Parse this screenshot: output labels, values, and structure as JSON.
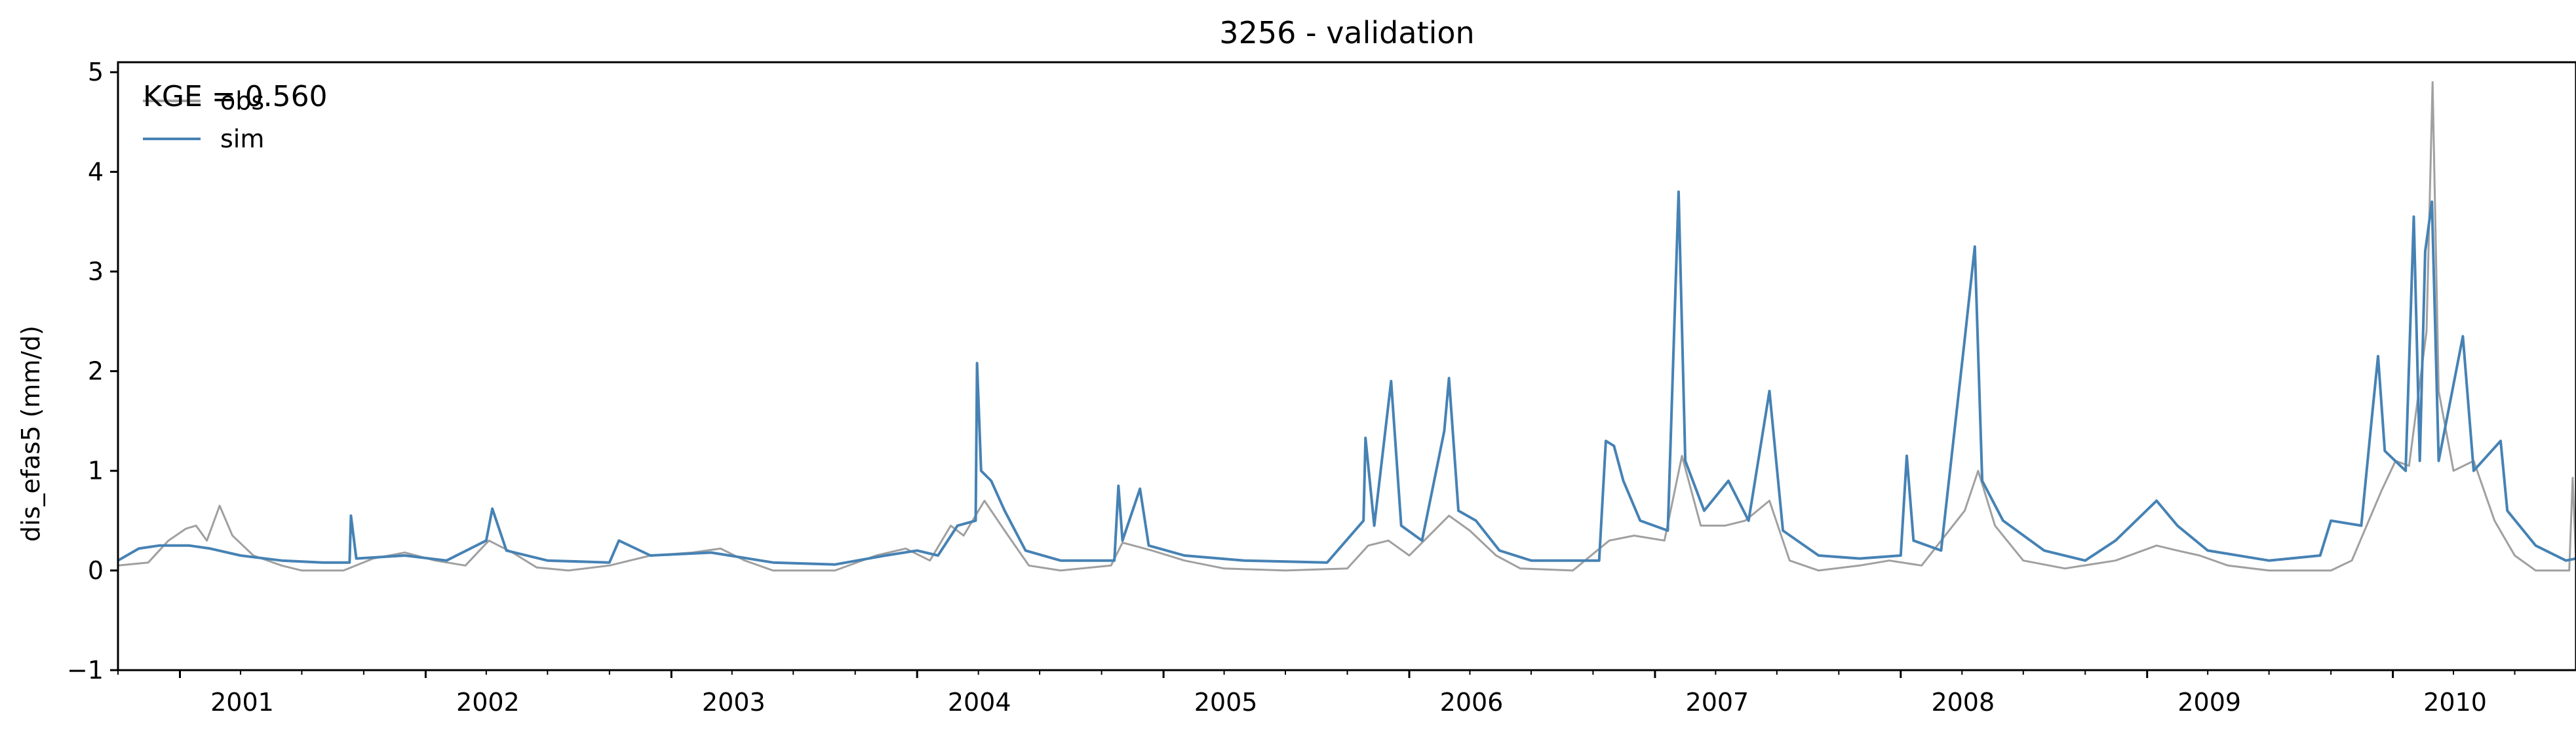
{
  "chart_data": {
    "type": "line",
    "title": "3256 - validation",
    "ylabel": "dis_efas5 (mm/d)",
    "xlabel": "",
    "annotation": "KGE = 0.560",
    "x_range": [
      "2000-10-01",
      "2010-09-30"
    ],
    "ylim": [
      -1,
      5.1
    ],
    "yticks": [
      -1,
      0,
      1,
      2,
      3,
      4,
      5
    ],
    "xticks": [
      "2001",
      "2002",
      "2003",
      "2004",
      "2005",
      "2006",
      "2007",
      "2008",
      "2009",
      "2010"
    ],
    "grid": false,
    "legend_position": "top-left",
    "series": [
      {
        "name": "obs",
        "color": "#a0a0a0",
        "points": [
          [
            "2000-10-01",
            0.05
          ],
          [
            "2000-11-15",
            0.08
          ],
          [
            "2000-12-15",
            0.3
          ],
          [
            "2001-01-10",
            0.42
          ],
          [
            "2001-01-25",
            0.45
          ],
          [
            "2001-02-10",
            0.3
          ],
          [
            "2001-03-01",
            0.65
          ],
          [
            "2001-03-20",
            0.35
          ],
          [
            "2001-04-20",
            0.15
          ],
          [
            "2001-06-01",
            0.05
          ],
          [
            "2001-07-01",
            0.0
          ],
          [
            "2001-09-01",
            0.0
          ],
          [
            "2001-10-15",
            0.12
          ],
          [
            "2001-12-01",
            0.18
          ],
          [
            "2002-01-15",
            0.1
          ],
          [
            "2002-03-01",
            0.05
          ],
          [
            "2002-04-05",
            0.3
          ],
          [
            "2002-05-10",
            0.18
          ],
          [
            "2002-06-15",
            0.03
          ],
          [
            "2002-08-01",
            0.0
          ],
          [
            "2002-10-01",
            0.05
          ],
          [
            "2002-12-01",
            0.15
          ],
          [
            "2003-02-01",
            0.18
          ],
          [
            "2003-03-15",
            0.22
          ],
          [
            "2003-04-20",
            0.1
          ],
          [
            "2003-06-01",
            0.0
          ],
          [
            "2003-09-01",
            0.0
          ],
          [
            "2003-11-01",
            0.15
          ],
          [
            "2003-12-15",
            0.22
          ],
          [
            "2004-01-20",
            0.1
          ],
          [
            "2004-02-20",
            0.45
          ],
          [
            "2004-03-10",
            0.35
          ],
          [
            "2004-04-10",
            0.7
          ],
          [
            "2004-05-10",
            0.4
          ],
          [
            "2004-06-15",
            0.05
          ],
          [
            "2004-08-01",
            0.0
          ],
          [
            "2004-10-15",
            0.05
          ],
          [
            "2004-11-01",
            0.28
          ],
          [
            "2004-12-15",
            0.2
          ],
          [
            "2005-02-01",
            0.1
          ],
          [
            "2005-04-01",
            0.02
          ],
          [
            "2005-07-01",
            0.0
          ],
          [
            "2005-10-01",
            0.02
          ],
          [
            "2005-11-01",
            0.25
          ],
          [
            "2005-12-01",
            0.3
          ],
          [
            "2006-01-01",
            0.15
          ],
          [
            "2006-03-01",
            0.55
          ],
          [
            "2006-04-01",
            0.4
          ],
          [
            "2006-05-10",
            0.15
          ],
          [
            "2006-06-15",
            0.02
          ],
          [
            "2006-09-01",
            0.0
          ],
          [
            "2006-10-25",
            0.3
          ],
          [
            "2006-12-01",
            0.35
          ],
          [
            "2007-01-15",
            0.3
          ],
          [
            "2007-02-10",
            1.15
          ],
          [
            "2007-03-10",
            0.45
          ],
          [
            "2007-04-15",
            0.45
          ],
          [
            "2007-05-15",
            0.5
          ],
          [
            "2007-06-20",
            0.7
          ],
          [
            "2007-07-20",
            0.1
          ],
          [
            "2007-09-01",
            0.0
          ],
          [
            "2007-11-01",
            0.05
          ],
          [
            "2007-12-15",
            0.1
          ],
          [
            "2008-02-01",
            0.05
          ],
          [
            "2008-04-05",
            0.6
          ],
          [
            "2008-04-25",
            1.0
          ],
          [
            "2008-05-20",
            0.45
          ],
          [
            "2008-07-01",
            0.1
          ],
          [
            "2008-09-01",
            0.02
          ],
          [
            "2008-11-15",
            0.1
          ],
          [
            "2009-01-15",
            0.25
          ],
          [
            "2009-02-15",
            0.2
          ],
          [
            "2009-03-20",
            0.15
          ],
          [
            "2009-05-01",
            0.05
          ],
          [
            "2009-07-01",
            0.0
          ],
          [
            "2009-10-01",
            0.0
          ],
          [
            "2009-11-01",
            0.1
          ],
          [
            "2009-12-15",
            0.8
          ],
          [
            "2010-01-05",
            1.1
          ],
          [
            "2010-01-25",
            1.05
          ],
          [
            "2010-02-20",
            2.4
          ],
          [
            "2010-03-01",
            4.9
          ],
          [
            "2010-03-10",
            1.8
          ],
          [
            "2010-04-01",
            1.0
          ],
          [
            "2010-05-01",
            1.1
          ],
          [
            "2010-06-01",
            0.5
          ],
          [
            "2010-07-01",
            0.15
          ],
          [
            "2010-08-01",
            0.0
          ],
          [
            "2010-09-20",
            0.0
          ],
          [
            "2010-09-25",
            0.93
          ],
          [
            "2010-09-30",
            0.1
          ]
        ]
      },
      {
        "name": "sim",
        "color": "#4682b4",
        "points": [
          [
            "2000-10-01",
            0.1
          ],
          [
            "2000-11-01",
            0.22
          ],
          [
            "2000-12-01",
            0.25
          ],
          [
            "2001-01-15",
            0.25
          ],
          [
            "2001-02-15",
            0.22
          ],
          [
            "2001-04-01",
            0.15
          ],
          [
            "2001-06-01",
            0.1
          ],
          [
            "2001-08-01",
            0.08
          ],
          [
            "2001-09-10",
            0.08
          ],
          [
            "2001-09-12",
            0.55
          ],
          [
            "2001-09-20",
            0.12
          ],
          [
            "2001-12-01",
            0.15
          ],
          [
            "2002-02-01",
            0.1
          ],
          [
            "2002-04-01",
            0.3
          ],
          [
            "2002-04-10",
            0.62
          ],
          [
            "2002-05-01",
            0.2
          ],
          [
            "2002-07-01",
            0.1
          ],
          [
            "2002-10-01",
            0.08
          ],
          [
            "2002-10-15",
            0.3
          ],
          [
            "2002-12-01",
            0.15
          ],
          [
            "2003-03-01",
            0.18
          ],
          [
            "2003-06-01",
            0.08
          ],
          [
            "2003-09-01",
            0.06
          ],
          [
            "2003-11-15",
            0.15
          ],
          [
            "2004-01-01",
            0.2
          ],
          [
            "2004-02-01",
            0.15
          ],
          [
            "2004-03-01",
            0.45
          ],
          [
            "2004-03-28",
            0.5
          ],
          [
            "2004-03-30",
            2.08
          ],
          [
            "2004-04-05",
            1.0
          ],
          [
            "2004-04-20",
            0.9
          ],
          [
            "2004-05-10",
            0.6
          ],
          [
            "2004-06-10",
            0.2
          ],
          [
            "2004-08-01",
            0.1
          ],
          [
            "2004-10-20",
            0.1
          ],
          [
            "2004-10-26",
            0.85
          ],
          [
            "2004-11-01",
            0.3
          ],
          [
            "2004-11-27",
            0.82
          ],
          [
            "2004-12-10",
            0.25
          ],
          [
            "2005-02-01",
            0.15
          ],
          [
            "2005-05-01",
            0.1
          ],
          [
            "2005-09-01",
            0.08
          ],
          [
            "2005-10-25",
            0.5
          ],
          [
            "2005-10-28",
            1.33
          ],
          [
            "2005-11-10",
            0.45
          ],
          [
            "2005-12-05",
            1.9
          ],
          [
            "2005-12-20",
            0.45
          ],
          [
            "2006-01-20",
            0.3
          ],
          [
            "2006-02-22",
            1.4
          ],
          [
            "2006-03-01",
            1.93
          ],
          [
            "2006-03-15",
            0.6
          ],
          [
            "2006-04-10",
            0.5
          ],
          [
            "2006-05-15",
            0.2
          ],
          [
            "2006-07-01",
            0.1
          ],
          [
            "2006-10-10",
            0.1
          ],
          [
            "2006-10-20",
            1.3
          ],
          [
            "2006-11-01",
            1.25
          ],
          [
            "2006-11-15",
            0.9
          ],
          [
            "2006-12-10",
            0.5
          ],
          [
            "2007-01-20",
            0.4
          ],
          [
            "2007-02-05",
            3.8
          ],
          [
            "2007-02-15",
            1.1
          ],
          [
            "2007-03-15",
            0.6
          ],
          [
            "2007-04-20",
            0.9
          ],
          [
            "2007-05-20",
            0.5
          ],
          [
            "2007-06-20",
            1.8
          ],
          [
            "2007-07-10",
            0.4
          ],
          [
            "2007-09-01",
            0.15
          ],
          [
            "2007-11-01",
            0.12
          ],
          [
            "2008-01-01",
            0.15
          ],
          [
            "2008-01-10",
            1.15
          ],
          [
            "2008-01-20",
            0.3
          ],
          [
            "2008-03-01",
            0.2
          ],
          [
            "2008-04-05",
            2.32
          ],
          [
            "2008-04-20",
            3.25
          ],
          [
            "2008-05-01",
            0.9
          ],
          [
            "2008-06-01",
            0.5
          ],
          [
            "2008-08-01",
            0.2
          ],
          [
            "2008-10-01",
            0.1
          ],
          [
            "2008-11-15",
            0.3
          ],
          [
            "2009-01-15",
            0.7
          ],
          [
            "2009-02-15",
            0.45
          ],
          [
            "2009-04-01",
            0.2
          ],
          [
            "2009-07-01",
            0.1
          ],
          [
            "2009-09-15",
            0.15
          ],
          [
            "2009-10-01",
            0.5
          ],
          [
            "2009-11-15",
            0.45
          ],
          [
            "2009-12-01",
            1.55
          ],
          [
            "2009-12-10",
            2.15
          ],
          [
            "2009-12-20",
            1.2
          ],
          [
            "2010-01-20",
            1.0
          ],
          [
            "2010-02-01",
            3.55
          ],
          [
            "2010-02-10",
            1.1
          ],
          [
            "2010-02-18",
            3.2
          ],
          [
            "2010-02-28",
            3.7
          ],
          [
            "2010-03-10",
            1.1
          ],
          [
            "2010-04-15",
            2.35
          ],
          [
            "2010-05-01",
            1.0
          ],
          [
            "2010-06-10",
            1.3
          ],
          [
            "2010-06-20",
            0.6
          ],
          [
            "2010-08-01",
            0.25
          ],
          [
            "2010-09-15",
            0.1
          ],
          [
            "2010-09-30",
            0.12
          ]
        ]
      }
    ]
  }
}
